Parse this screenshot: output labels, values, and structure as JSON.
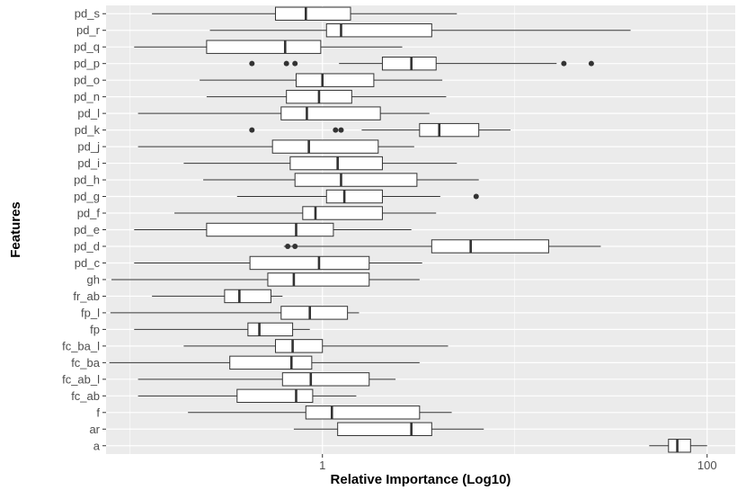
{
  "chart_data": {
    "type": "boxplot",
    "xlabel": "Relative Importance (Log10)",
    "ylabel": "Features",
    "x_scale": "log10",
    "xlim": [
      0.075,
      140
    ],
    "x_major_ticks": [
      {
        "value": 1,
        "label": "1"
      },
      {
        "value": 100,
        "label": "100"
      }
    ],
    "x_minor_ticks": [
      0.1,
      10
    ],
    "grid": true,
    "colors": {
      "panel": "#ebebeb",
      "grid": "#ffffff",
      "box_fill": "#ffffff",
      "box_line": "#333333",
      "outlier": "#333333"
    },
    "features": [
      {
        "name": "pd_s",
        "whisker_low": 0.13,
        "q1": 0.57,
        "median": 0.82,
        "q3": 1.4,
        "whisker_high": 5.0,
        "outliers": []
      },
      {
        "name": "pd_r",
        "whisker_low": 0.26,
        "q1": 1.05,
        "median": 1.25,
        "q3": 3.7,
        "whisker_high": 40.0,
        "outliers": []
      },
      {
        "name": "pd_q",
        "whisker_low": 0.105,
        "q1": 0.25,
        "median": 0.64,
        "q3": 0.98,
        "whisker_high": 2.6,
        "outliers": []
      },
      {
        "name": "pd_p",
        "whisker_low": 1.22,
        "q1": 2.05,
        "median": 2.9,
        "q3": 3.9,
        "whisker_high": 16.5,
        "outliers": [
          0.43,
          0.65,
          0.72,
          18.0,
          25.0
        ]
      },
      {
        "name": "pd_o",
        "whisker_low": 0.23,
        "q1": 0.73,
        "median": 1.0,
        "q3": 1.85,
        "whisker_high": 4.2,
        "outliers": []
      },
      {
        "name": "pd_n",
        "whisker_low": 0.25,
        "q1": 0.65,
        "median": 0.96,
        "q3": 1.42,
        "whisker_high": 4.4,
        "outliers": []
      },
      {
        "name": "pd_l",
        "whisker_low": 0.11,
        "q1": 0.61,
        "median": 0.83,
        "q3": 2.0,
        "whisker_high": 3.6,
        "outliers": []
      },
      {
        "name": "pd_k",
        "whisker_low": 1.6,
        "q1": 3.2,
        "median": 4.05,
        "q3": 6.5,
        "whisker_high": 9.5,
        "outliers": [
          0.43,
          1.17,
          1.25
        ]
      },
      {
        "name": "pd_j",
        "whisker_low": 0.11,
        "q1": 0.55,
        "median": 0.85,
        "q3": 1.95,
        "whisker_high": 3.0,
        "outliers": []
      },
      {
        "name": "pd_i",
        "whisker_low": 0.19,
        "q1": 0.68,
        "median": 1.2,
        "q3": 2.05,
        "whisker_high": 5.0,
        "outliers": []
      },
      {
        "name": "pd_h",
        "whisker_low": 0.24,
        "q1": 0.72,
        "median": 1.25,
        "q3": 3.1,
        "whisker_high": 6.5,
        "outliers": []
      },
      {
        "name": "pd_g",
        "whisker_low": 0.36,
        "q1": 1.05,
        "median": 1.3,
        "q3": 2.05,
        "whisker_high": 4.1,
        "outliers": [
          6.3
        ]
      },
      {
        "name": "pd_f",
        "whisker_low": 0.17,
        "q1": 0.79,
        "median": 0.92,
        "q3": 2.05,
        "whisker_high": 3.9,
        "outliers": []
      },
      {
        "name": "pd_e",
        "whisker_low": 0.105,
        "q1": 0.25,
        "median": 0.73,
        "q3": 1.14,
        "whisker_high": 2.9,
        "outliers": []
      },
      {
        "name": "pd_d",
        "whisker_low": 0.63,
        "q1": 3.7,
        "median": 5.9,
        "q3": 15.0,
        "whisker_high": 28.0,
        "outliers": [
          0.66,
          0.72
        ]
      },
      {
        "name": "pd_c",
        "whisker_low": 0.105,
        "q1": 0.42,
        "median": 0.96,
        "q3": 1.75,
        "whisker_high": 3.3,
        "outliers": []
      },
      {
        "name": "gh",
        "whisker_low": 0.08,
        "q1": 0.52,
        "median": 0.71,
        "q3": 1.75,
        "whisker_high": 3.2,
        "outliers": []
      },
      {
        "name": "fr_ab",
        "whisker_low": 0.13,
        "q1": 0.31,
        "median": 0.37,
        "q3": 0.54,
        "whisker_high": 0.62,
        "outliers": []
      },
      {
        "name": "fp_l",
        "whisker_low": 0.079,
        "q1": 0.61,
        "median": 0.86,
        "q3": 1.35,
        "whisker_high": 1.55,
        "outliers": []
      },
      {
        "name": "fp",
        "whisker_low": 0.105,
        "q1": 0.41,
        "median": 0.47,
        "q3": 0.7,
        "whisker_high": 0.86,
        "outliers": []
      },
      {
        "name": "fc_ba_l",
        "whisker_low": 0.19,
        "q1": 0.57,
        "median": 0.7,
        "q3": 1.0,
        "whisker_high": 4.5,
        "outliers": []
      },
      {
        "name": "fc_ba",
        "whisker_low": 0.078,
        "q1": 0.33,
        "median": 0.69,
        "q3": 0.88,
        "whisker_high": 3.2,
        "outliers": []
      },
      {
        "name": "fc_ab_l",
        "whisker_low": 0.11,
        "q1": 0.62,
        "median": 0.87,
        "q3": 1.75,
        "whisker_high": 2.4,
        "outliers": []
      },
      {
        "name": "fc_ab",
        "whisker_low": 0.11,
        "q1": 0.36,
        "median": 0.73,
        "q3": 0.89,
        "whisker_high": 1.5,
        "outliers": []
      },
      {
        "name": "f",
        "whisker_low": 0.2,
        "q1": 0.82,
        "median": 1.12,
        "q3": 3.2,
        "whisker_high": 4.7,
        "outliers": []
      },
      {
        "name": "ar",
        "whisker_low": 0.71,
        "q1": 1.2,
        "median": 2.9,
        "q3": 3.7,
        "whisker_high": 6.9,
        "outliers": []
      },
      {
        "name": "a",
        "whisker_low": 50.0,
        "q1": 63.0,
        "median": 70.0,
        "q3": 82.0,
        "whisker_high": 100.0,
        "outliers": []
      }
    ]
  }
}
